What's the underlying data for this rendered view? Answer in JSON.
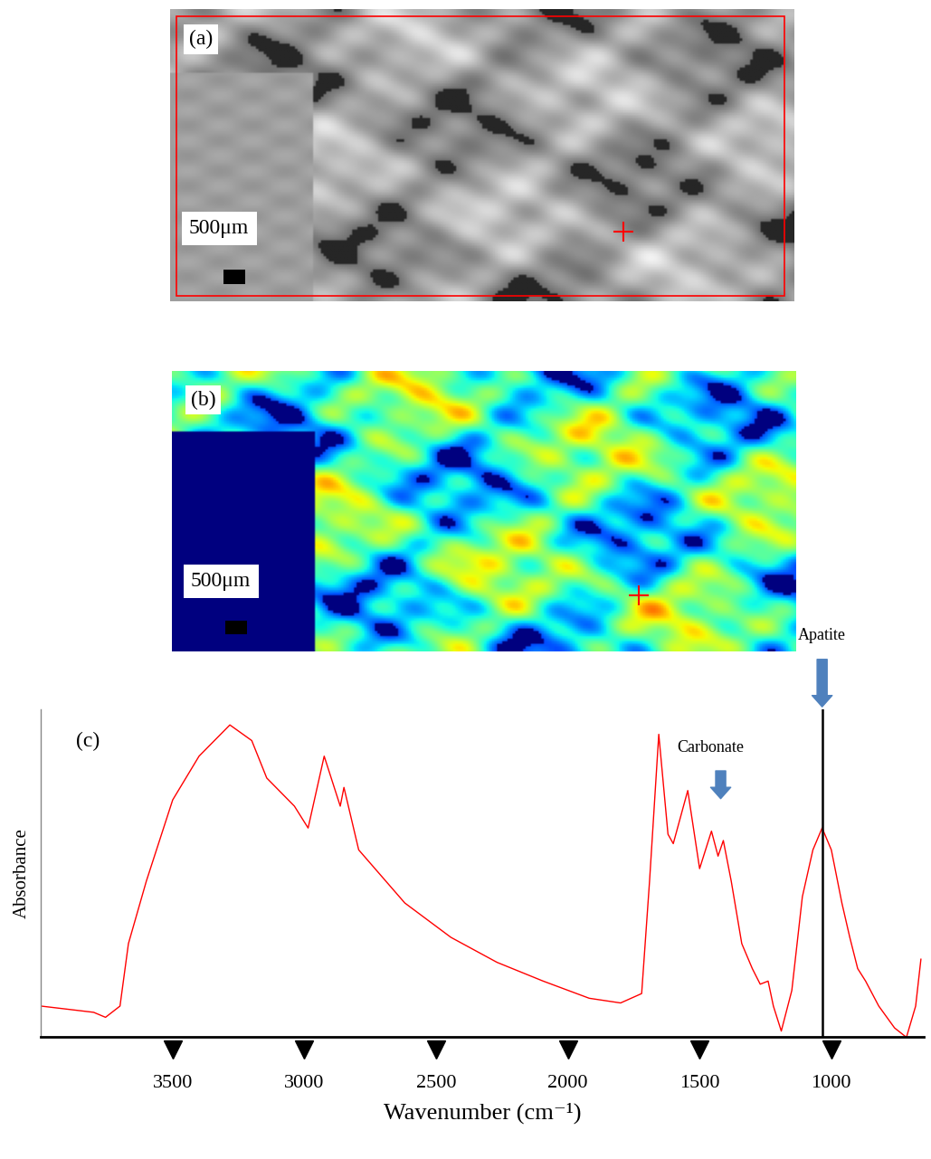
{
  "panels": [
    {
      "label": "(a)",
      "scale_bar": "500μm"
    },
    {
      "label": "(b)",
      "scale_bar": "500μm"
    }
  ],
  "chart_data": {
    "type": "line",
    "title": "(c)",
    "xlabel": "Wavenumber (cm⁻¹)",
    "ylabel": "Absorbance",
    "x": [
      4000,
      3800,
      3755,
      3700,
      3668,
      3600,
      3500,
      3400,
      3283,
      3200,
      3143,
      3038,
      2986,
      2925,
      2864,
      2850,
      2794,
      2619,
      2444,
      2269,
      2094,
      1919,
      1800,
      1720,
      1690,
      1655,
      1620,
      1600,
      1545,
      1500,
      1455,
      1430,
      1410,
      1380,
      1340,
      1300,
      1270,
      1240,
      1220,
      1190,
      1150,
      1110,
      1070,
      1035,
      1000,
      960,
      930,
      900,
      870,
      820,
      760,
      715,
      680,
      660
    ],
    "values": [
      0.1,
      0.08,
      0.064,
      0.1,
      0.3,
      0.5,
      0.76,
      0.9,
      1.0,
      0.95,
      0.83,
      0.74,
      0.67,
      0.9,
      0.74,
      0.8,
      0.6,
      0.43,
      0.32,
      0.24,
      0.18,
      0.125,
      0.11,
      0.14,
      0.5,
      0.97,
      0.65,
      0.62,
      0.79,
      0.54,
      0.66,
      0.58,
      0.63,
      0.5,
      0.3,
      0.22,
      0.17,
      0.18,
      0.1,
      0.02,
      0.15,
      0.45,
      0.6,
      0.67,
      0.6,
      0.43,
      0.32,
      0.22,
      0.18,
      0.1,
      0.03,
      0.0,
      0.1,
      0.25
    ],
    "color": "#ff0000",
    "xlim": [
      4000,
      650
    ],
    "xticks": [
      3500,
      3000,
      2500,
      2000,
      1500,
      1000
    ],
    "ylim": [
      0,
      1.05
    ],
    "tick_labels": "x",
    "annotations": [
      {
        "text": "Carbonate",
        "x": 1420
      },
      {
        "text": "Apatite",
        "x": 1035
      }
    ],
    "reference_line": 1035
  }
}
